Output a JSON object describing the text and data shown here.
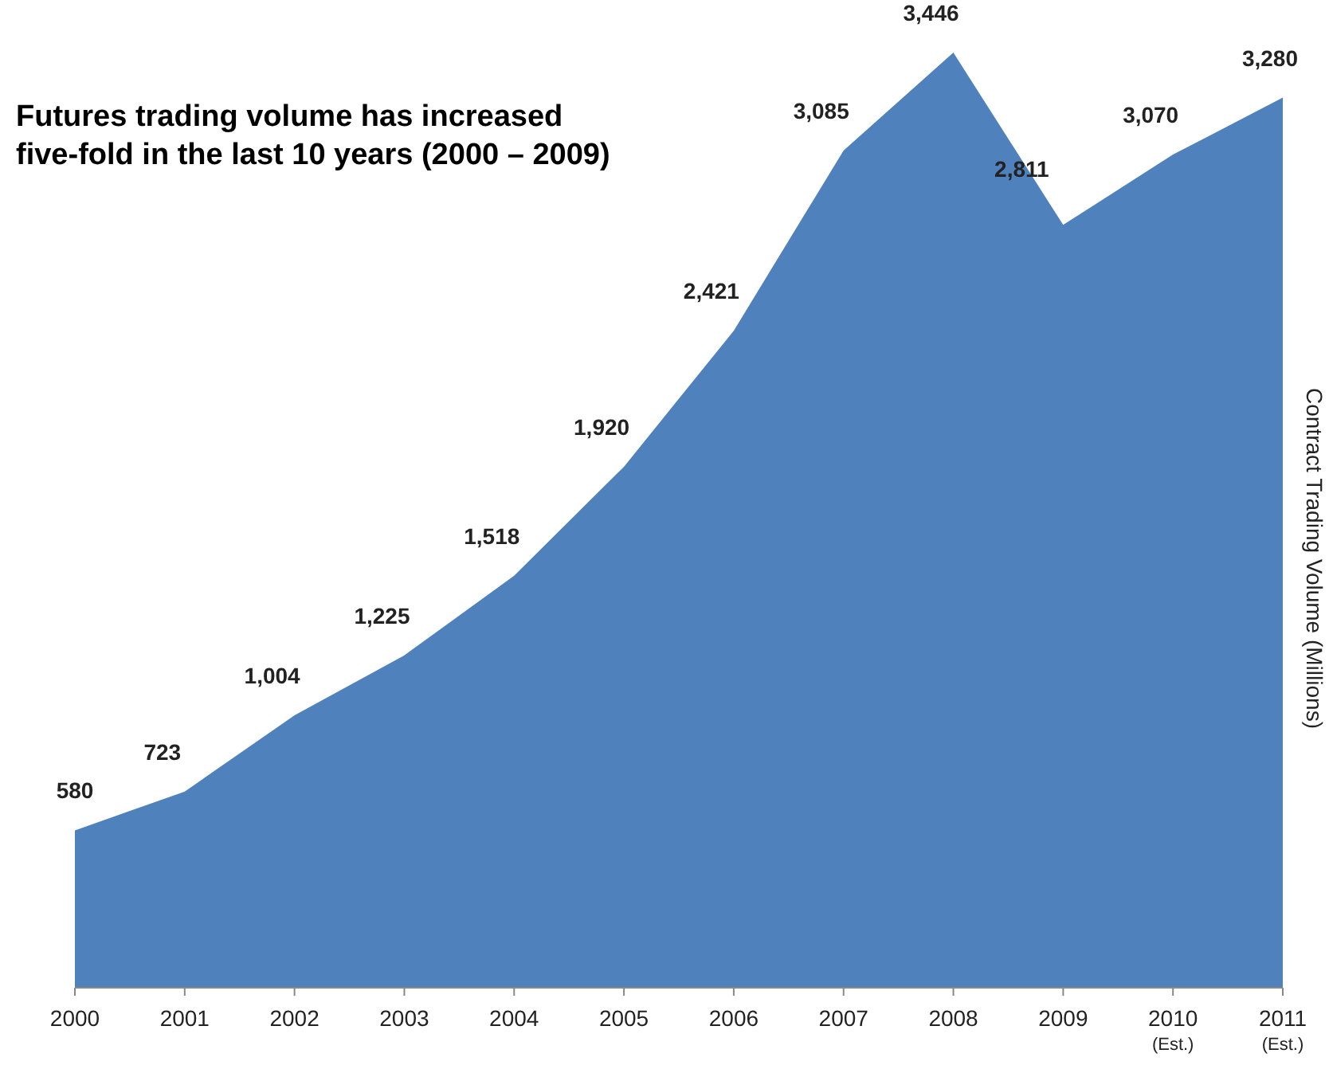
{
  "chart_data": {
    "type": "area",
    "title": "Futures trading volume has increased five-fold in the last 10 years (2000 – 2009)",
    "ylabel": "Contract Trading Volume (Millions)",
    "categories": [
      "2000",
      "2001",
      "2002",
      "2003",
      "2004",
      "2005",
      "2006",
      "2007",
      "2008",
      "2009",
      "2010\n(Est.)",
      "2011\n(Est.)"
    ],
    "values": [
      580,
      723,
      1004,
      1225,
      1518,
      1920,
      2421,
      3085,
      3446,
      2811,
      3070,
      3280
    ],
    "value_labels": [
      "580",
      "723",
      "1,004",
      "1,225",
      "1,518",
      "1,920",
      "2,421",
      "3,085",
      "3,446",
      "2,811",
      "3,070",
      "3,280"
    ],
    "color": "#4f81bd",
    "tick_labels": "x"
  }
}
